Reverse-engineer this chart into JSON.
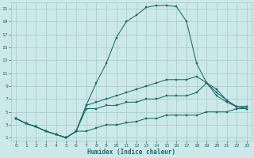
{
  "xlabel": "Humidex (Indice chaleur)",
  "bg_color": "#cce8e8",
  "line_color": "#1a6b6b",
  "grid_color": "#a8d0d0",
  "xlim": [
    -0.5,
    23.5
  ],
  "ylim": [
    0.5,
    22
  ],
  "xticks": [
    0,
    1,
    2,
    3,
    4,
    5,
    6,
    7,
    8,
    9,
    10,
    11,
    12,
    13,
    14,
    15,
    16,
    17,
    18,
    19,
    20,
    21,
    22,
    23
  ],
  "yticks": [
    1,
    3,
    5,
    7,
    9,
    11,
    13,
    15,
    17,
    19,
    21
  ],
  "series": [
    {
      "x": [
        0,
        1,
        2,
        3,
        4,
        5,
        6,
        7,
        8,
        9,
        10,
        11,
        12,
        13,
        14,
        15,
        16,
        17,
        18,
        19,
        20,
        21,
        22,
        23
      ],
      "y": [
        4.0,
        3.2,
        2.7,
        2.0,
        1.5,
        1.0,
        2.0,
        6.0,
        9.5,
        12.5,
        16.5,
        19.0,
        20.0,
        21.2,
        21.5,
        21.5,
        21.3,
        19.0,
        12.5,
        9.5,
        8.0,
        6.8,
        5.8,
        5.8
      ]
    },
    {
      "x": [
        0,
        1,
        2,
        3,
        4,
        5,
        6,
        7,
        8,
        9,
        10,
        11,
        12,
        13,
        14,
        15,
        16,
        17,
        18,
        19,
        20,
        21,
        22,
        23
      ],
      "y": [
        4.0,
        3.2,
        2.7,
        2.0,
        1.5,
        1.0,
        2.0,
        6.0,
        6.5,
        7.0,
        7.5,
        8.0,
        8.5,
        9.0,
        9.5,
        10.0,
        10.0,
        10.0,
        10.5,
        9.5,
        8.5,
        6.8,
        5.8,
        5.8
      ]
    },
    {
      "x": [
        0,
        1,
        2,
        3,
        4,
        5,
        6,
        7,
        8,
        9,
        10,
        11,
        12,
        13,
        14,
        15,
        16,
        17,
        18,
        19,
        20,
        21,
        22,
        23
      ],
      "y": [
        4.0,
        3.2,
        2.7,
        2.0,
        1.5,
        1.0,
        2.0,
        5.5,
        5.5,
        6.0,
        6.0,
        6.5,
        6.5,
        7.0,
        7.0,
        7.5,
        7.5,
        7.5,
        8.0,
        9.5,
        7.5,
        6.5,
        5.8,
        5.5
      ]
    },
    {
      "x": [
        0,
        1,
        2,
        3,
        4,
        5,
        6,
        7,
        8,
        9,
        10,
        11,
        12,
        13,
        14,
        15,
        16,
        17,
        18,
        19,
        20,
        21,
        22,
        23
      ],
      "y": [
        4.0,
        3.2,
        2.7,
        2.0,
        1.5,
        1.0,
        2.0,
        2.0,
        2.5,
        3.0,
        3.0,
        3.3,
        3.5,
        4.0,
        4.0,
        4.5,
        4.5,
        4.5,
        4.5,
        5.0,
        5.0,
        5.0,
        5.5,
        5.5
      ]
    }
  ]
}
